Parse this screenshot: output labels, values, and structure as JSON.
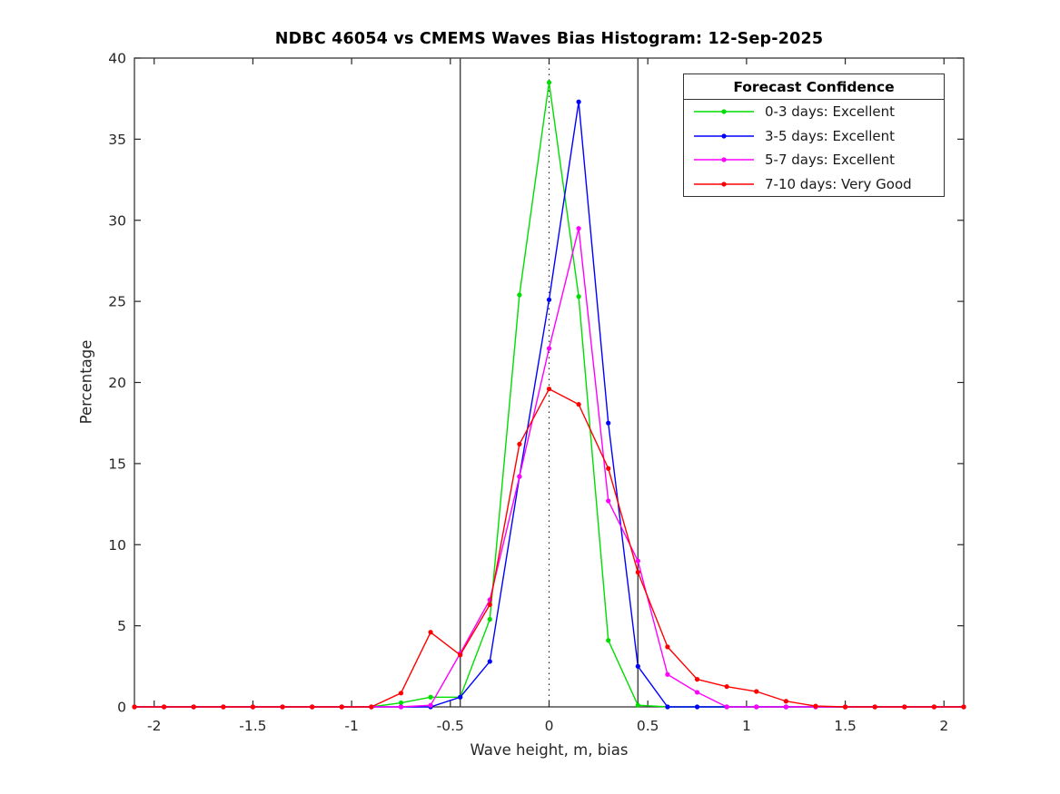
{
  "title": "NDBC 46054 vs CMEMS Waves Bias Histogram: 12-Sep-2025",
  "chart_data": {
    "type": "line",
    "title": "NDBC 46054 vs CMEMS Waves Bias Histogram: 12-Sep-2025",
    "xlabel": "Wave height, m, bias",
    "ylabel": "Percentage",
    "xlim": [
      -2.1,
      2.1
    ],
    "ylim": [
      0,
      40
    ],
    "xticks": [
      -2,
      -1.5,
      -1,
      -0.5,
      0,
      0.5,
      1,
      1.5,
      2
    ],
    "xtick_labels": [
      "-2",
      "-1.5",
      "-1",
      "-0.5",
      "0",
      "0.5",
      "1",
      "1.5",
      "2"
    ],
    "yticks": [
      0,
      5,
      10,
      15,
      20,
      25,
      30,
      35,
      40
    ],
    "ytick_labels": [
      "0",
      "5",
      "10",
      "15",
      "20",
      "25",
      "30",
      "35",
      "40"
    ],
    "grid": false,
    "axis_color": "#262626",
    "reference_lines": {
      "solid_vertical": [
        -0.45,
        0.45
      ],
      "dotted_vertical": [
        0
      ]
    },
    "legend": {
      "title": "Forecast Confidence",
      "position": "top-right"
    },
    "x": [
      -2.1,
      -1.95,
      -1.8,
      -1.65,
      -1.5,
      -1.35,
      -1.2,
      -1.05,
      -0.9,
      -0.75,
      -0.6,
      -0.45,
      -0.3,
      -0.15,
      0,
      0.15,
      0.3,
      0.45,
      0.6,
      0.75,
      0.9,
      1.05,
      1.2,
      1.35,
      1.5,
      1.65,
      1.8,
      1.95,
      2.1
    ],
    "series": [
      {
        "name": "0-3 days: Excellent",
        "color": "#00dd00",
        "values": [
          0,
          0,
          0,
          0,
          0,
          0,
          0,
          0,
          0,
          0.25,
          0.6,
          0.6,
          5.4,
          25.4,
          38.5,
          25.3,
          4.1,
          0.1,
          0,
          0,
          0,
          0,
          0,
          0,
          0,
          0,
          0,
          0,
          0
        ]
      },
      {
        "name": "3-5 days: Excellent",
        "color": "#0000ff",
        "values": [
          0,
          0,
          0,
          0,
          0,
          0,
          0,
          0,
          0,
          0,
          0,
          0.6,
          2.8,
          14.2,
          25.1,
          37.3,
          17.5,
          2.5,
          0,
          0,
          0,
          0,
          0,
          0,
          0,
          0,
          0,
          0,
          0
        ]
      },
      {
        "name": "5-7 days: Excellent",
        "color": "#ff00ff",
        "values": [
          0,
          0,
          0,
          0,
          0,
          0,
          0,
          0,
          0,
          0,
          0.1,
          3.3,
          6.6,
          14.2,
          22.1,
          29.5,
          12.7,
          9.0,
          2.0,
          0.9,
          0,
          0,
          0,
          0,
          0,
          0,
          0,
          0,
          0
        ]
      },
      {
        "name": "7-10 days: Very Good",
        "color": "#ff0000",
        "values": [
          0,
          0,
          0,
          0,
          0,
          0,
          0,
          0,
          0,
          0.85,
          4.6,
          3.2,
          6.3,
          16.2,
          19.6,
          18.65,
          14.7,
          8.3,
          3.7,
          1.7,
          1.25,
          0.95,
          0.35,
          0.05,
          0,
          0,
          0,
          0,
          0
        ]
      }
    ]
  }
}
